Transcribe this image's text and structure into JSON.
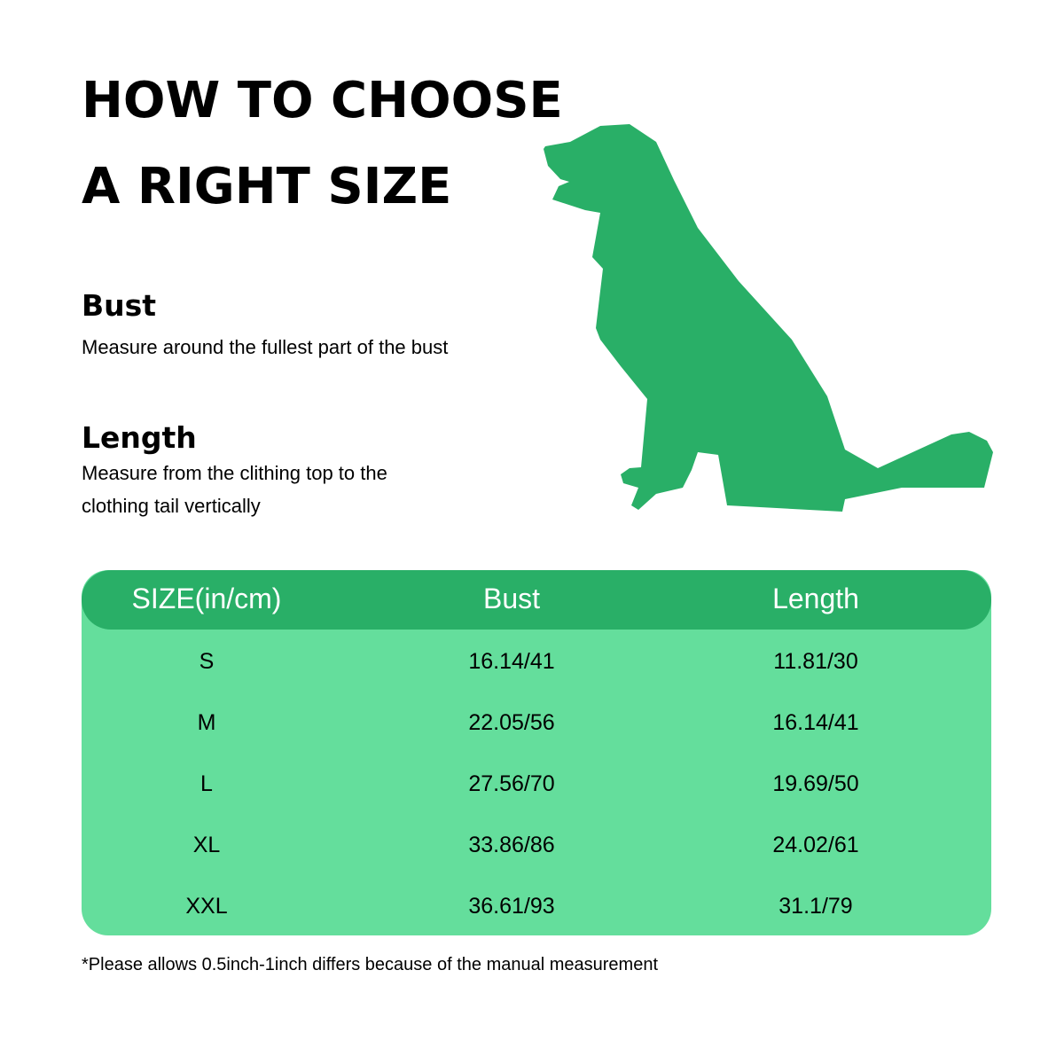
{
  "title_line1": "HOW TO CHOOSE",
  "title_line2": "A RIGHT SIZE",
  "bust": {
    "heading": "Bust",
    "text": "Measure around the fullest part of the bust"
  },
  "length": {
    "heading": "Length",
    "line1": "Measure from the clithing top to the",
    "line2": "clothing tail vertically"
  },
  "colors": {
    "dog": "#29af67",
    "header": "#29af67",
    "body": "#64de9c"
  },
  "table": {
    "headers": [
      "SIZE(in/cm)",
      "Bust",
      "Length"
    ],
    "rows": [
      [
        "S",
        "16.14/41",
        "11.81/30"
      ],
      [
        "M",
        "22.05/56",
        "16.14/41"
      ],
      [
        "L",
        "27.56/70",
        "19.69/50"
      ],
      [
        "XL",
        "33.86/86",
        "24.02/61"
      ],
      [
        "XXL",
        "36.61/93",
        "31.1/79"
      ]
    ]
  },
  "note": "*Please allows 0.5inch-1inch differs because of the manual measurement"
}
